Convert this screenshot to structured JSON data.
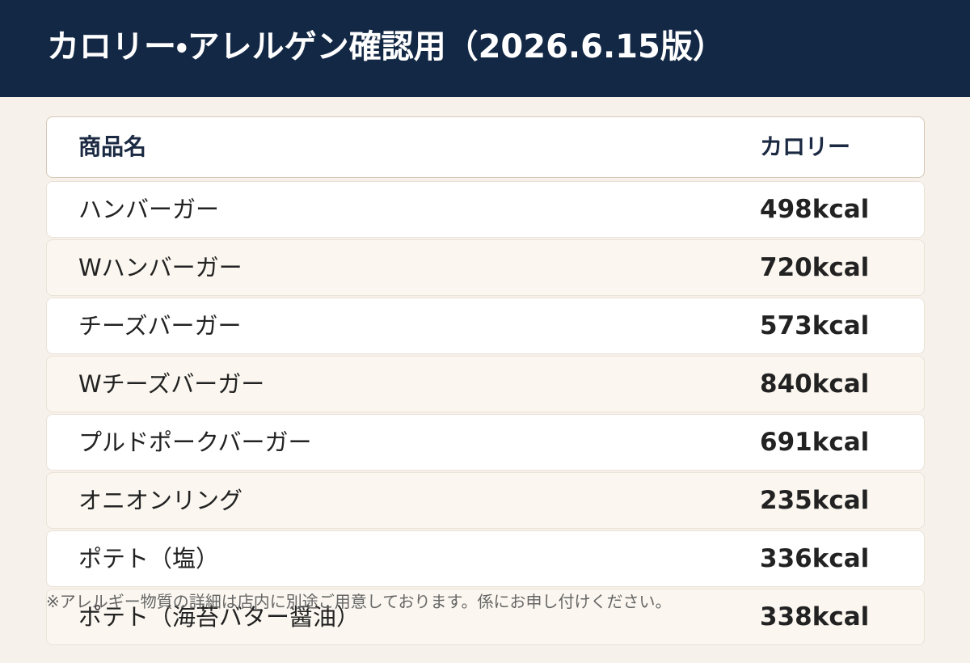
{
  "header": {
    "title": "カロリー・アレルゲン確認用（2026.6.15版）"
  },
  "table": {
    "columns": [
      "商品名",
      "カロリー"
    ],
    "rows": [
      [
        "ハンバーガー",
        "498kcal"
      ],
      [
        "Wハンバーガー",
        "720kcal"
      ],
      [
        "チーズバーガー",
        "573kcal"
      ],
      [
        "Wチーズバーガー",
        "840kcal"
      ],
      [
        "プルドポークバーガー",
        "691kcal"
      ],
      [
        "オニオンリング",
        "235kcal"
      ],
      [
        "ポテト（塩）",
        "336kcal"
      ],
      [
        "ポテト（海苔バター醤油）",
        "338kcal"
      ]
    ]
  },
  "footnote": "※アレルギー物質の詳細は店内に別途ご用意しております。係にお申し付けください。"
}
